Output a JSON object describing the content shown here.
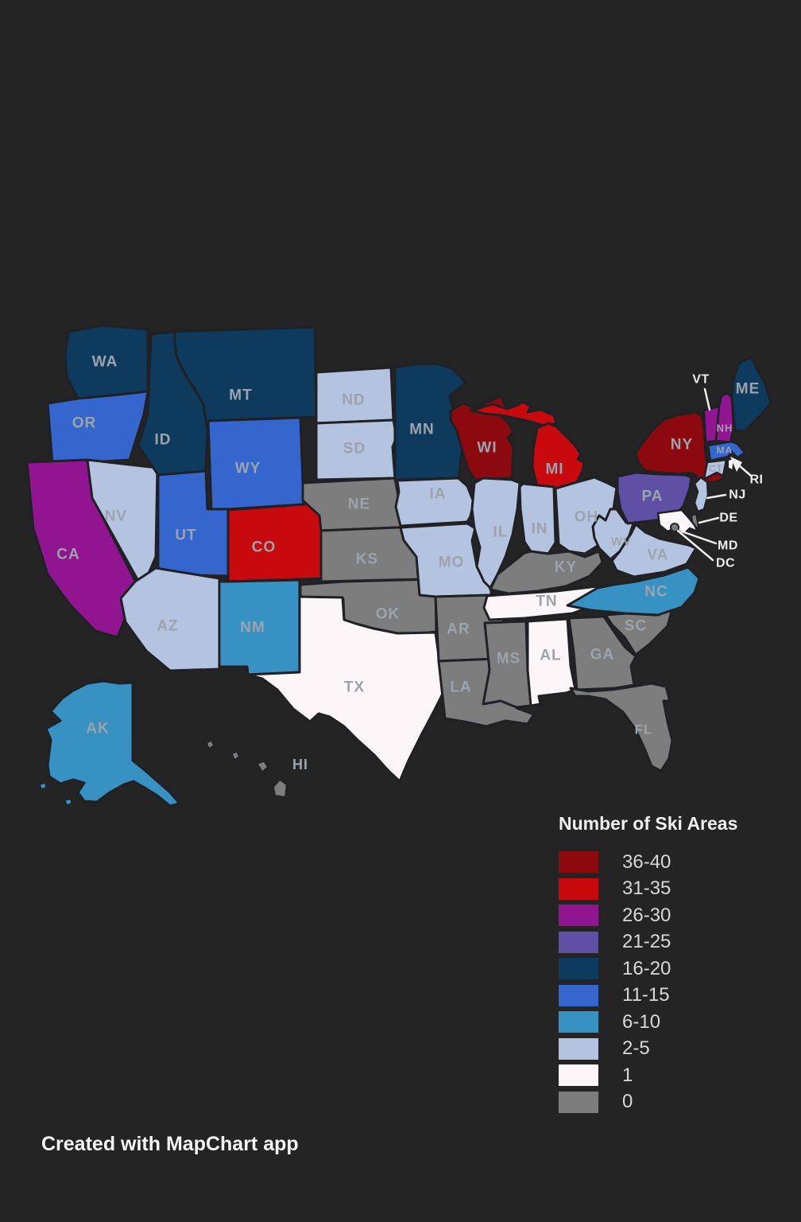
{
  "page": {
    "background": "#242424"
  },
  "legend": {
    "title": "Number of Ski Areas",
    "items": [
      {
        "range": "36-40",
        "color": "#8c0a0f"
      },
      {
        "range": "31-35",
        "color": "#c80a0f"
      },
      {
        "range": "26-30",
        "color": "#911491"
      },
      {
        "range": "21-25",
        "color": "#5f50a5"
      },
      {
        "range": "16-20",
        "color": "#0e3a5e"
      },
      {
        "range": "11-15",
        "color": "#3566cd"
      },
      {
        "range": "6-10",
        "color": "#3791c3"
      },
      {
        "range": "2-5",
        "color": "#b3c3e0"
      },
      {
        "range": "1",
        "color": "#fdf6f9"
      },
      {
        "range": "0",
        "color": "#7d7d7d"
      }
    ]
  },
  "footer": {
    "credit": "Created with MapChart app"
  },
  "map": {
    "states": [
      {
        "id": "WA",
        "label": "WA",
        "range": "16-20"
      },
      {
        "id": "OR",
        "label": "OR",
        "range": "11-15"
      },
      {
        "id": "CA",
        "label": "CA",
        "range": "26-30"
      },
      {
        "id": "NV",
        "label": "NV",
        "range": "2-5"
      },
      {
        "id": "ID",
        "label": "ID",
        "range": "16-20"
      },
      {
        "id": "MT",
        "label": "MT",
        "range": "16-20"
      },
      {
        "id": "WY",
        "label": "WY",
        "range": "11-15"
      },
      {
        "id": "UT",
        "label": "UT",
        "range": "11-15"
      },
      {
        "id": "CO",
        "label": "CO",
        "range": "31-35"
      },
      {
        "id": "AZ",
        "label": "AZ",
        "range": "2-5"
      },
      {
        "id": "NM",
        "label": "NM",
        "range": "6-10"
      },
      {
        "id": "ND",
        "label": "ND",
        "range": "2-5"
      },
      {
        "id": "SD",
        "label": "SD",
        "range": "2-5"
      },
      {
        "id": "NE",
        "label": "NE",
        "range": "0"
      },
      {
        "id": "KS",
        "label": "KS",
        "range": "0"
      },
      {
        "id": "OK",
        "label": "OK",
        "range": "0"
      },
      {
        "id": "TX",
        "label": "TX",
        "range": "1"
      },
      {
        "id": "MN",
        "label": "MN",
        "range": "16-20"
      },
      {
        "id": "IA",
        "label": "IA",
        "range": "2-5"
      },
      {
        "id": "MO",
        "label": "MO",
        "range": "2-5"
      },
      {
        "id": "AR",
        "label": "AR",
        "range": "0"
      },
      {
        "id": "LA",
        "label": "LA",
        "range": "0"
      },
      {
        "id": "WI",
        "label": "WI",
        "range": "36-40"
      },
      {
        "id": "IL",
        "label": "IL",
        "range": "2-5"
      },
      {
        "id": "MI",
        "label": "MI",
        "range": "31-35"
      },
      {
        "id": "IN",
        "label": "IN",
        "range": "2-5"
      },
      {
        "id": "OH",
        "label": "OH",
        "range": "2-5"
      },
      {
        "id": "KY",
        "label": "KY",
        "range": "0"
      },
      {
        "id": "TN",
        "label": "TN",
        "range": "1"
      },
      {
        "id": "MS",
        "label": "MS",
        "range": "0"
      },
      {
        "id": "AL",
        "label": "AL",
        "range": "1"
      },
      {
        "id": "GA",
        "label": "GA",
        "range": "0"
      },
      {
        "id": "SC",
        "label": "SC",
        "range": "0"
      },
      {
        "id": "NC",
        "label": "NC",
        "range": "6-10"
      },
      {
        "id": "FL",
        "label": "FL",
        "range": "0"
      },
      {
        "id": "WV",
        "label": "WV",
        "range": "2-5"
      },
      {
        "id": "VA",
        "label": "VA",
        "range": "2-5"
      },
      {
        "id": "PA",
        "label": "PA",
        "range": "21-25"
      },
      {
        "id": "NY",
        "label": "NY",
        "range": "36-40"
      },
      {
        "id": "VT",
        "label": "VT",
        "range": "26-30"
      },
      {
        "id": "NH",
        "label": "NH",
        "range": "26-30"
      },
      {
        "id": "ME",
        "label": "ME",
        "range": "16-20"
      },
      {
        "id": "MA",
        "label": "MA",
        "range": "11-15"
      },
      {
        "id": "CT",
        "label": "CT",
        "range": "2-5"
      },
      {
        "id": "RI",
        "label": "RI",
        "range": "1"
      },
      {
        "id": "NJ",
        "label": "NJ",
        "range": "2-5"
      },
      {
        "id": "DE",
        "label": "DE",
        "range": "0"
      },
      {
        "id": "MD",
        "label": "MD",
        "range": "1"
      },
      {
        "id": "DC",
        "label": "DC",
        "range": "0"
      },
      {
        "id": "AK",
        "label": "AK",
        "range": "6-10"
      },
      {
        "id": "HI",
        "label": "HI",
        "range": "0"
      }
    ],
    "callouts": [
      {
        "id": "VT",
        "label": "VT"
      },
      {
        "id": "RI",
        "label": "RI"
      },
      {
        "id": "NJ",
        "label": "NJ"
      },
      {
        "id": "DE",
        "label": "DE"
      },
      {
        "id": "MD",
        "label": "MD"
      },
      {
        "id": "DC",
        "label": "DC"
      }
    ]
  }
}
